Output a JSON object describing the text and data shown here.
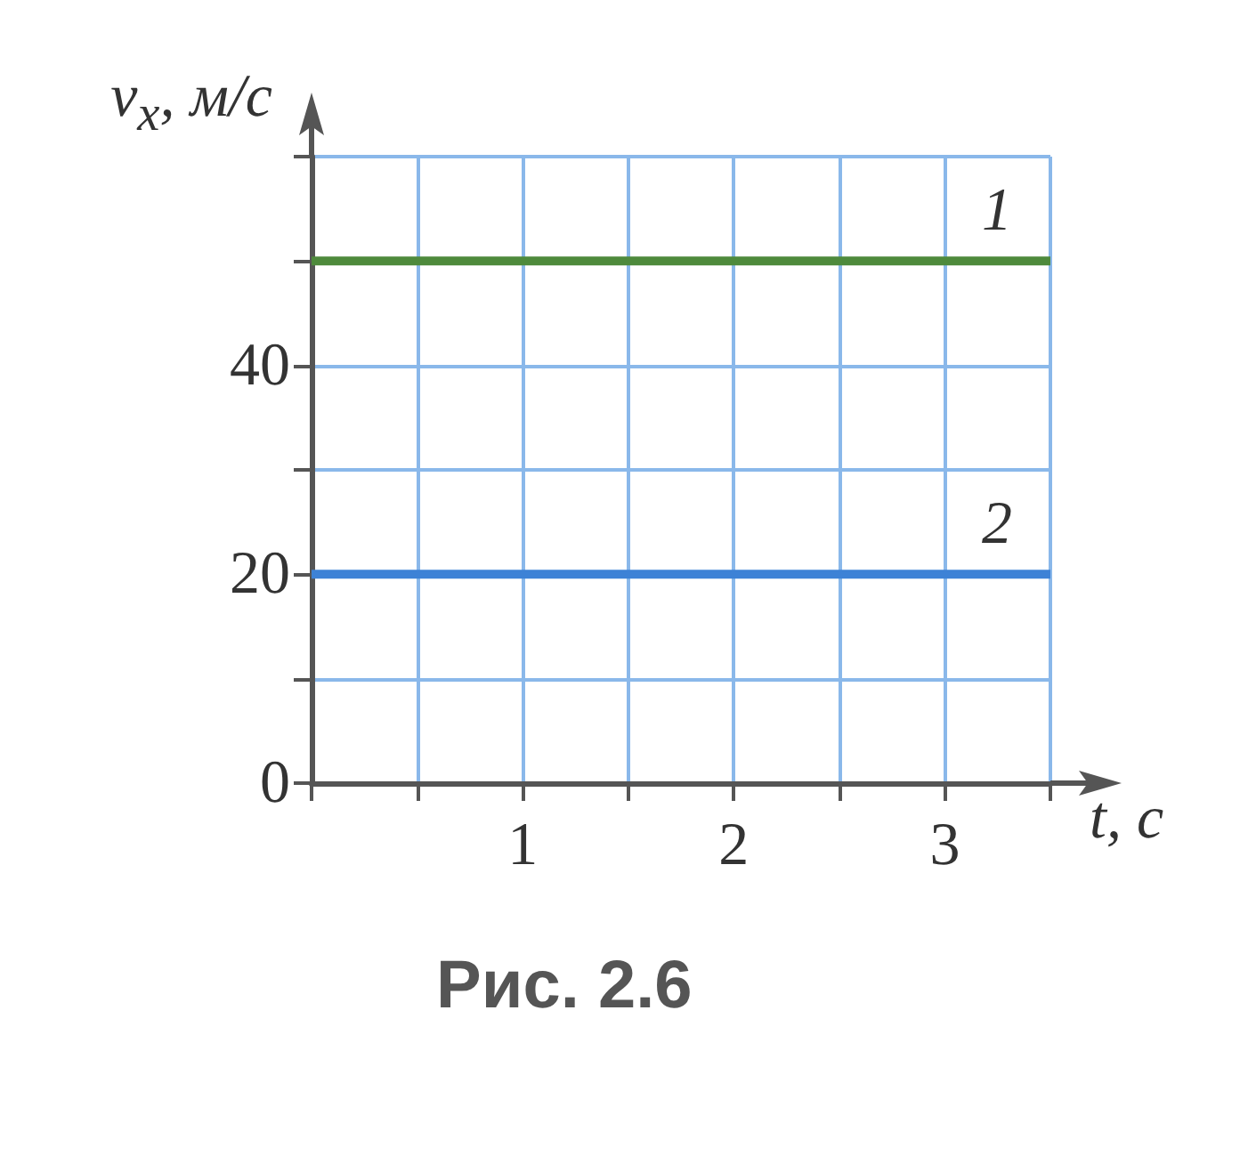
{
  "chart_data": {
    "type": "line",
    "xlabel": "t, с",
    "ylabel": "v$_{x}$, м/с",
    "annotations": [
      "Рис. 2.6"
    ],
    "x": [
      0,
      3.5
    ],
    "series": [
      {
        "name": "1",
        "color": "#4e8a3c",
        "values": [
          50,
          50
        ]
      },
      {
        "name": "2",
        "color": "#3d82d6",
        "values": [
          20,
          20
        ]
      }
    ],
    "xlim": [
      0,
      3.5
    ],
    "xticks": [
      {
        "value": 0,
        "label": null
      },
      {
        "value": 0.5,
        "label": null
      },
      1,
      {
        "value": 1.5,
        "label": null
      },
      2,
      {
        "value": 2.5,
        "label": null
      },
      3,
      {
        "value": 3.5,
        "label": null
      }
    ],
    "ylim": [
      0,
      60
    ],
    "yticks": [
      0,
      {
        "value": 10,
        "label": null
      },
      20,
      {
        "value": 30,
        "label": null
      },
      40,
      {
        "value": 50,
        "label": null
      },
      {
        "value": 60,
        "label": null
      }
    ],
    "grid": true,
    "marker": "none"
  }
}
